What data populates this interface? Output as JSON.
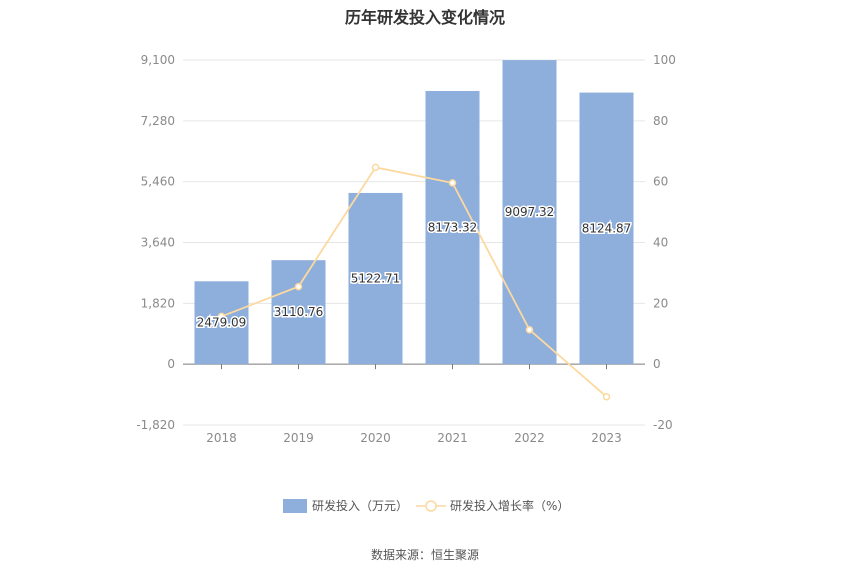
{
  "title": "历年研发投入变化情况",
  "source": "数据来源：恒生聚源",
  "chart_data": {
    "type": "bar",
    "categories": [
      "2018",
      "2019",
      "2020",
      "2021",
      "2022",
      "2023"
    ],
    "series": [
      {
        "name": "研发投入（万元）",
        "type": "bar",
        "axis": "left",
        "color": "#8eaedc",
        "values": [
          2479.09,
          3110.76,
          5122.71,
          8173.32,
          9097.32,
          8124.87
        ],
        "labels": [
          "2479.09",
          "3110.76",
          "5122.71",
          "8173.32",
          "9097.32",
          "8124.87"
        ]
      },
      {
        "name": "研发投入增长率（%）",
        "type": "line",
        "axis": "right",
        "color": "#fbd9a0",
        "values": [
          15.7,
          25.5,
          64.7,
          59.6,
          11.3,
          -10.7
        ]
      }
    ],
    "y_left": {
      "min": -1820,
      "max": 9100,
      "ticks": [
        "-1,820",
        "0",
        "1,820",
        "3,640",
        "5,460",
        "7,280",
        "9,100"
      ]
    },
    "y_right": {
      "min": -20,
      "max": 100,
      "ticks": [
        "-20",
        "0",
        "20",
        "40",
        "60",
        "80",
        "100"
      ]
    },
    "grid": true,
    "legend_position": "bottom"
  }
}
